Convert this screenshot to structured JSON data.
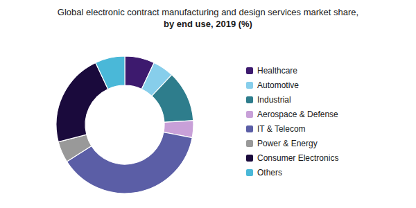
{
  "chart_data": {
    "type": "pie",
    "title": "Global electronic contract manufacturing and design services market share,",
    "subtitle": "by end use, 2019 (%)",
    "categories": [
      "Healthcare",
      "Automotive",
      "Industrial",
      "Aerospace & Defense",
      "IT & Telecom",
      "Power & Energy",
      "Consumer Electronics",
      "Others"
    ],
    "values": [
      7,
      5,
      12,
      4,
      38,
      5,
      22,
      7
    ],
    "colors": [
      "#3d1a6e",
      "#87ceeb",
      "#2e7d8c",
      "#c8a0d8",
      "#5b5ea6",
      "#999999",
      "#1a0a3c",
      "#4ab8d8"
    ],
    "legend": "right"
  }
}
